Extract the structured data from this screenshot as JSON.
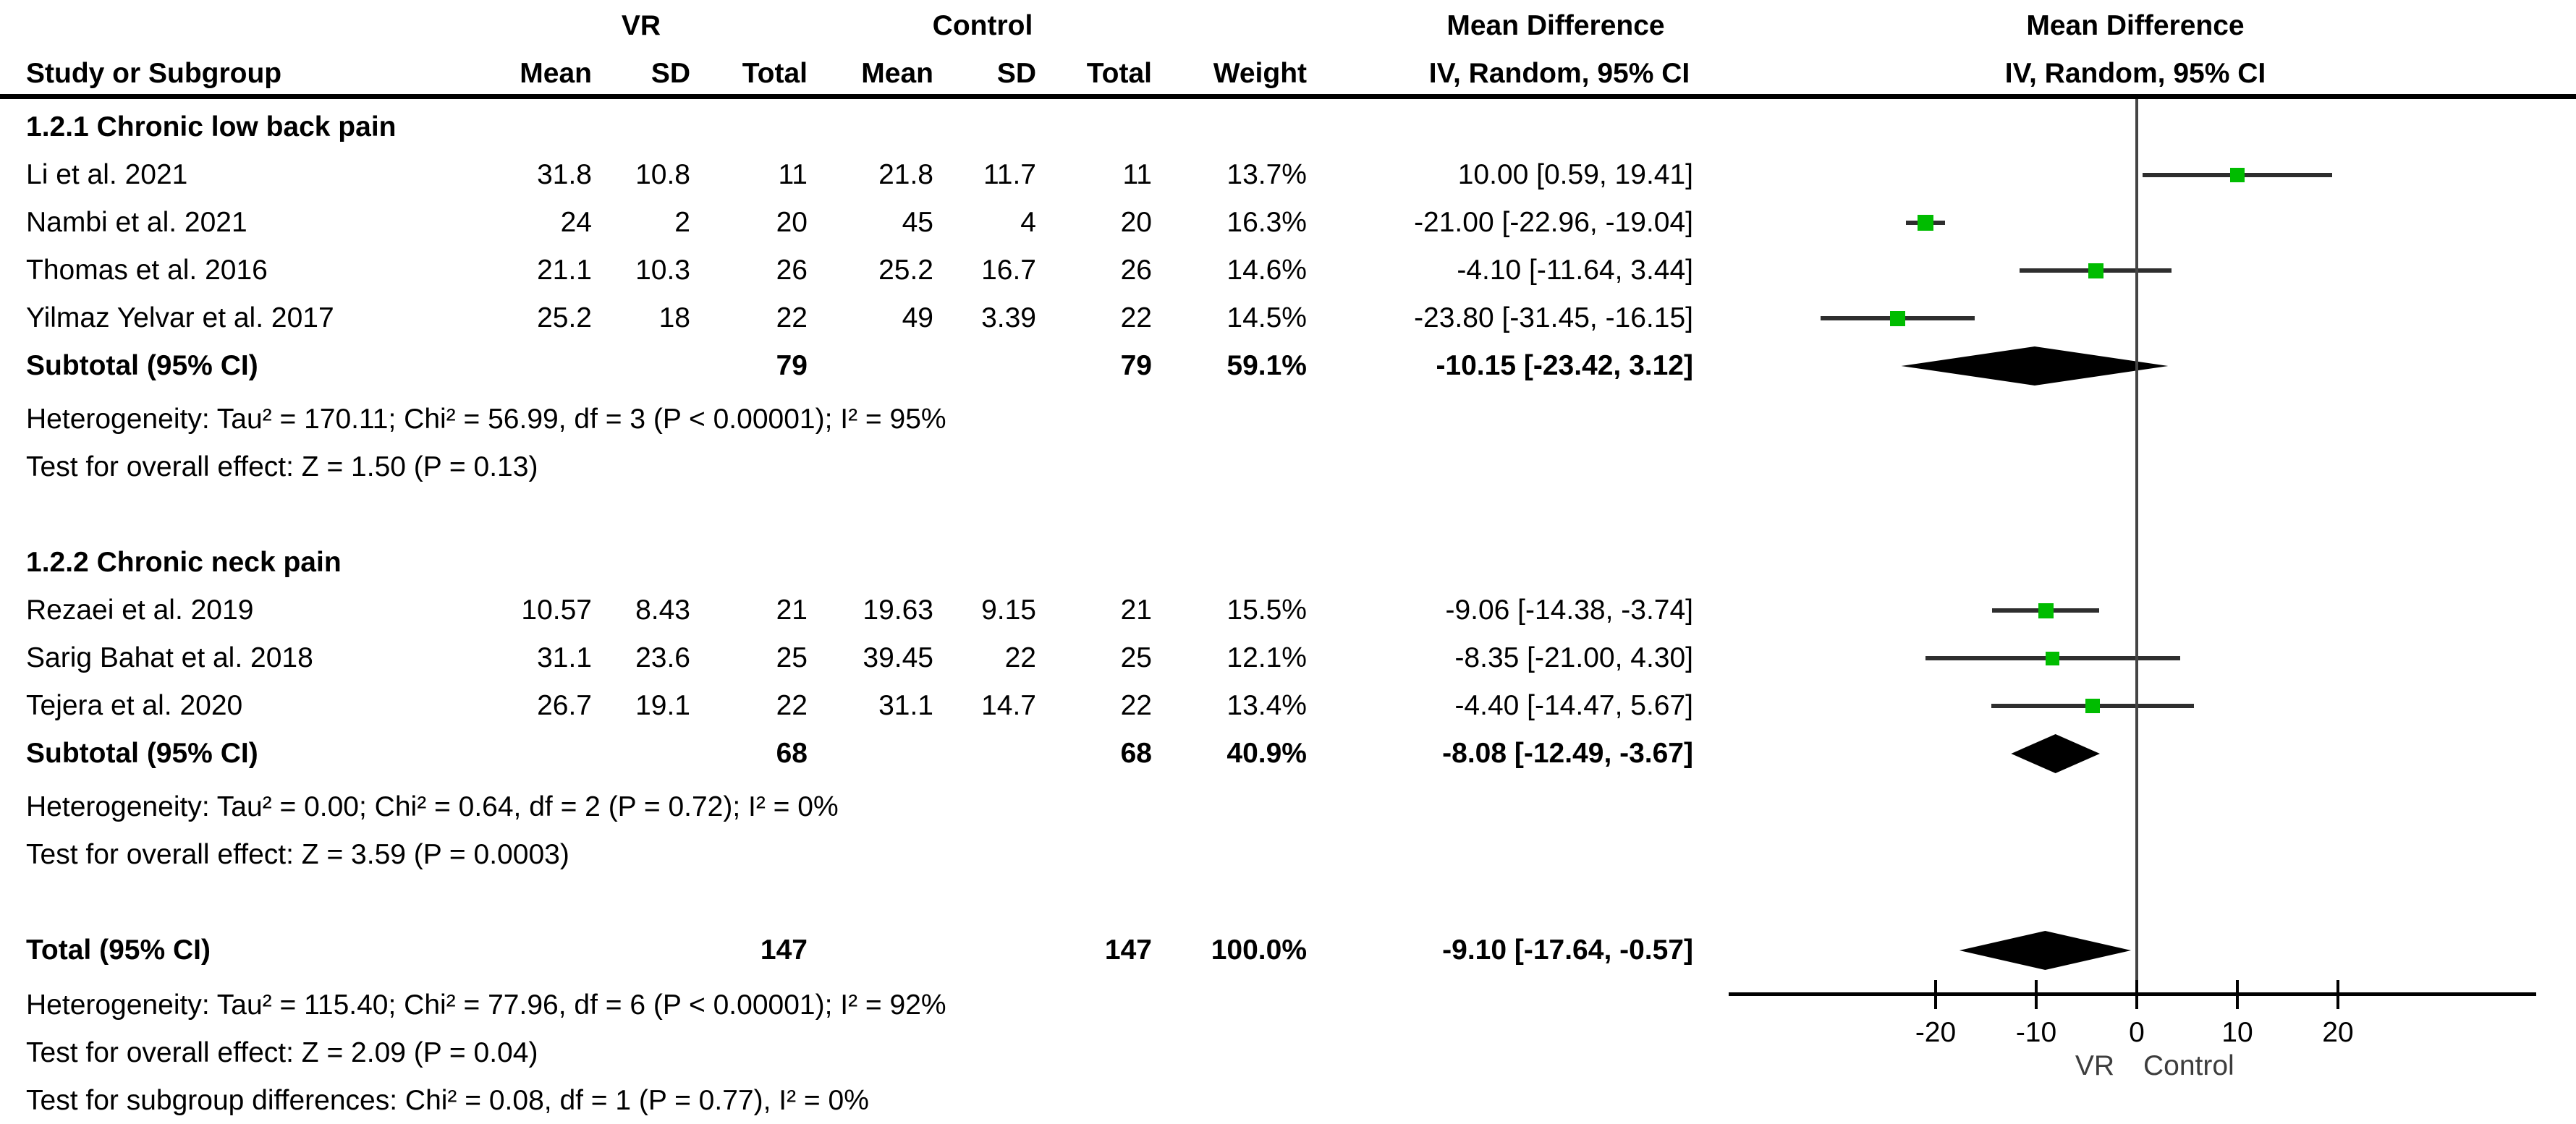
{
  "header": {
    "group1_label": "VR",
    "group2_label": "Control",
    "effect_label": "Mean Difference",
    "effect_sub_label": "IV, Random, 95% CI",
    "plot_effect_label": "Mean Difference",
    "plot_effect_sub_label": "IV, Random, 95% CI",
    "columns": [
      "Study or Subgroup",
      "Mean",
      "SD",
      "Total",
      "Mean",
      "SD",
      "Total",
      "Weight",
      "IV, Random, 95% CI"
    ]
  },
  "chart_data": {
    "type": "scatter",
    "plot_style": "forest",
    "title": "Mean Difference, IV, Random, 95% CI",
    "marker_color": "#00bc00",
    "line_color": "#2e2e2e",
    "diamond_color": "#000000",
    "x_axis": {
      "ticks": [
        -20,
        -10,
        0,
        10,
        20
      ],
      "tick_labels": [
        "-20",
        "-10",
        "0",
        "10",
        "20"
      ],
      "left_label": "VR",
      "right_label": "Control",
      "zero_line": 0
    },
    "subgroups": [
      {
        "title": "1.2.1 Chronic low back pain",
        "studies": [
          {
            "name": "Li et al. 2021",
            "mean1": "31.8",
            "sd1": "10.8",
            "total1": "11",
            "mean2": "21.8",
            "sd2": "11.7",
            "total2": "11",
            "weight": "13.7%",
            "weight_value": 13.7,
            "md": 10.0,
            "ci_low": 0.59,
            "ci_high": 19.41,
            "ci_text": "10.00 [0.59, 19.41]"
          },
          {
            "name": "Nambi et al. 2021",
            "mean1": "24",
            "sd1": "2",
            "total1": "20",
            "mean2": "45",
            "sd2": "4",
            "total2": "20",
            "weight": "16.3%",
            "weight_value": 16.3,
            "md": -21.0,
            "ci_low": -22.96,
            "ci_high": -19.04,
            "ci_text": "-21.00 [-22.96, -19.04]"
          },
          {
            "name": "Thomas et al. 2016",
            "mean1": "21.1",
            "sd1": "10.3",
            "total1": "26",
            "mean2": "25.2",
            "sd2": "16.7",
            "total2": "26",
            "weight": "14.6%",
            "weight_value": 14.6,
            "md": -4.1,
            "ci_low": -11.64,
            "ci_high": 3.44,
            "ci_text": "-4.10 [-11.64, 3.44]"
          },
          {
            "name": "Yilmaz Yelvar et al. 2017",
            "mean1": "25.2",
            "sd1": "18",
            "total1": "22",
            "mean2": "49",
            "sd2": "3.39",
            "total2": "22",
            "weight": "14.5%",
            "weight_value": 14.5,
            "md": -23.8,
            "ci_low": -31.45,
            "ci_high": -16.15,
            "ci_text": "-23.80 [-31.45, -16.15]"
          }
        ],
        "subtotal": {
          "label": "Subtotal (95% CI)",
          "total1": "79",
          "total2": "79",
          "weight": "59.1%",
          "md": -10.15,
          "ci_low": -23.42,
          "ci_high": 3.12,
          "ci_text": "-10.15 [-23.42, 3.12]"
        },
        "heterogeneity": "Heterogeneity: Tau² = 170.11; Chi² = 56.99, df = 3 (P < 0.00001); I² = 95%",
        "overall_effect": "Test for overall effect: Z = 1.50 (P = 0.13)"
      },
      {
        "title": "1.2.2 Chronic neck pain",
        "studies": [
          {
            "name": "Rezaei et al. 2019",
            "mean1": "10.57",
            "sd1": "8.43",
            "total1": "21",
            "mean2": "19.63",
            "sd2": "9.15",
            "total2": "21",
            "weight": "15.5%",
            "weight_value": 15.5,
            "md": -9.06,
            "ci_low": -14.38,
            "ci_high": -3.74,
            "ci_text": "-9.06 [-14.38, -3.74]"
          },
          {
            "name": "Sarig Bahat et al. 2018",
            "mean1": "31.1",
            "sd1": "23.6",
            "total1": "25",
            "mean2": "39.45",
            "sd2": "22",
            "total2": "25",
            "weight": "12.1%",
            "weight_value": 12.1,
            "md": -8.35,
            "ci_low": -21.0,
            "ci_high": 4.3,
            "ci_text": "-8.35 [-21.00, 4.30]"
          },
          {
            "name": "Tejera et al. 2020",
            "mean1": "26.7",
            "sd1": "19.1",
            "total1": "22",
            "mean2": "31.1",
            "sd2": "14.7",
            "total2": "22",
            "weight": "13.4%",
            "weight_value": 13.4,
            "md": -4.4,
            "ci_low": -14.47,
            "ci_high": 5.67,
            "ci_text": "-4.40 [-14.47, 5.67]"
          }
        ],
        "subtotal": {
          "label": "Subtotal (95% CI)",
          "total1": "68",
          "total2": "68",
          "weight": "40.9%",
          "md": -8.08,
          "ci_low": -12.49,
          "ci_high": -3.67,
          "ci_text": "-8.08 [-12.49, -3.67]"
        },
        "heterogeneity": "Heterogeneity: Tau² = 0.00; Chi² = 0.64, df = 2 (P = 0.72); I² = 0%",
        "overall_effect": "Test for overall effect: Z = 3.59 (P = 0.0003)"
      }
    ],
    "total": {
      "label": "Total (95% CI)",
      "total1": "147",
      "total2": "147",
      "weight": "100.0%",
      "md": -9.1,
      "ci_low": -17.64,
      "ci_high": -0.57,
      "ci_text": "-9.10 [-17.64, -0.57]"
    },
    "total_heterogeneity": "Heterogeneity: Tau² = 115.40; Chi² = 77.96, df = 6 (P < 0.00001); I² = 92%",
    "total_overall_effect": "Test for overall effect: Z = 2.09 (P = 0.04)",
    "subgroup_differences": "Test for subgroup differences: Chi² = 0.08, df = 1 (P = 0.77), I² = 0%"
  }
}
